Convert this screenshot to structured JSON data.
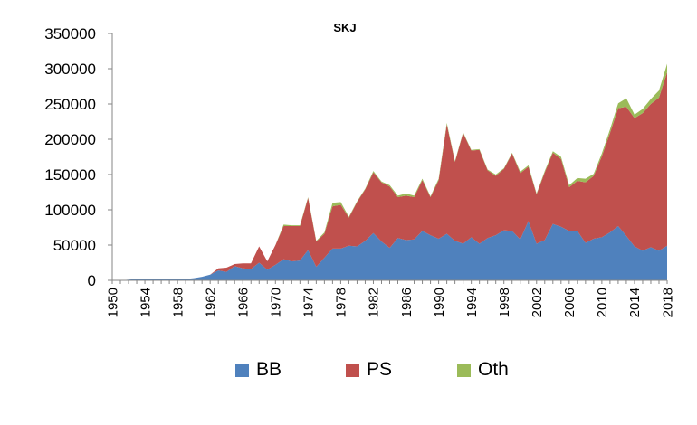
{
  "chart_data": {
    "type": "area",
    "title": "SKJ",
    "xlabel": "",
    "ylabel": "",
    "stacked": true,
    "ylim": [
      0,
      350000
    ],
    "yticks": [
      0,
      50000,
      100000,
      150000,
      200000,
      250000,
      300000,
      350000
    ],
    "ytick_labels": [
      "0",
      "50000",
      "100000",
      "150000",
      "200000",
      "250000",
      "300000",
      "350000"
    ],
    "xlim": [
      1950,
      2018
    ],
    "xticks": [
      1950,
      1954,
      1958,
      1962,
      1966,
      1970,
      1974,
      1978,
      1982,
      1986,
      1990,
      1994,
      1998,
      2002,
      2006,
      2010,
      2014,
      2018
    ],
    "xtick_labels": [
      "1950",
      "1954",
      "1958",
      "1962",
      "1966",
      "1970",
      "1974",
      "1978",
      "1982",
      "1986",
      "1990",
      "1994",
      "1998",
      "2002",
      "2006",
      "2010",
      "2014",
      "2018"
    ],
    "legend_position": "bottom",
    "x": [
      1950,
      1951,
      1952,
      1953,
      1954,
      1955,
      1956,
      1957,
      1958,
      1959,
      1960,
      1961,
      1962,
      1963,
      1964,
      1965,
      1966,
      1967,
      1968,
      1969,
      1970,
      1971,
      1972,
      1973,
      1974,
      1975,
      1976,
      1977,
      1978,
      1979,
      1980,
      1981,
      1982,
      1983,
      1984,
      1985,
      1986,
      1987,
      1988,
      1989,
      1990,
      1991,
      1992,
      1993,
      1994,
      1995,
      1996,
      1997,
      1998,
      1999,
      2000,
      2001,
      2002,
      2003,
      2004,
      2005,
      2006,
      2007,
      2008,
      2009,
      2010,
      2011,
      2012,
      2013,
      2014,
      2015,
      2016,
      2017,
      2018
    ],
    "series": [
      {
        "name": "BB",
        "color": "#4f81bd",
        "values": [
          0,
          0,
          1000,
          2000,
          2000,
          2000,
          2000,
          2000,
          2000,
          2000,
          3000,
          5000,
          8000,
          14000,
          12000,
          20000,
          17000,
          16000,
          25000,
          15000,
          22000,
          30000,
          27000,
          28000,
          43000,
          19000,
          32000,
          45000,
          45000,
          49000,
          48000,
          56000,
          67000,
          55000,
          46000,
          60000,
          57000,
          58000,
          70000,
          64000,
          59000,
          66000,
          56000,
          52000,
          61000,
          52000,
          60000,
          64000,
          71000,
          70000,
          58000,
          84000,
          52000,
          57000,
          80000,
          76000,
          70000,
          70000,
          53000,
          59000,
          61000,
          68000,
          77000,
          63000,
          48000,
          42000,
          47000,
          42000,
          49000
        ]
      },
      {
        "name": "PS",
        "color": "#c0504d",
        "values": [
          0,
          0,
          0,
          0,
          0,
          0,
          0,
          0,
          0,
          0,
          0,
          0,
          0,
          3000,
          6000,
          3000,
          7000,
          8000,
          23000,
          12000,
          28000,
          47000,
          50000,
          49000,
          74000,
          36000,
          34000,
          60000,
          62000,
          40000,
          63000,
          73000,
          86000,
          84000,
          87000,
          58000,
          63000,
          60000,
          72000,
          54000,
          83000,
          155000,
          112000,
          157000,
          123000,
          133000,
          96000,
          84000,
          87000,
          110000,
          94000,
          77000,
          70000,
          96000,
          101000,
          96000,
          62000,
          71000,
          86000,
          89000,
          115000,
          141000,
          167000,
          183000,
          182000,
          195000,
          203000,
          217000,
          246000
        ]
      },
      {
        "name": "Oth",
        "color": "#9bbb59",
        "values": [
          0,
          0,
          0,
          0,
          0,
          0,
          0,
          0,
          0,
          0,
          0,
          0,
          0,
          0,
          0,
          0,
          0,
          0,
          0,
          0,
          0,
          2000,
          1000,
          1000,
          1000,
          1000,
          2000,
          5000,
          4000,
          1000,
          1000,
          1000,
          2000,
          1000,
          2000,
          2000,
          3000,
          2000,
          2000,
          1000,
          2000,
          2000,
          1000,
          1000,
          1000,
          1000,
          1000,
          2000,
          1000,
          1000,
          2000,
          2000,
          1000,
          2000,
          2000,
          3000,
          3000,
          4000,
          5000,
          3000,
          4000,
          5000,
          7000,
          12000,
          5000,
          6000,
          7000,
          10000,
          12000
        ]
      }
    ]
  }
}
